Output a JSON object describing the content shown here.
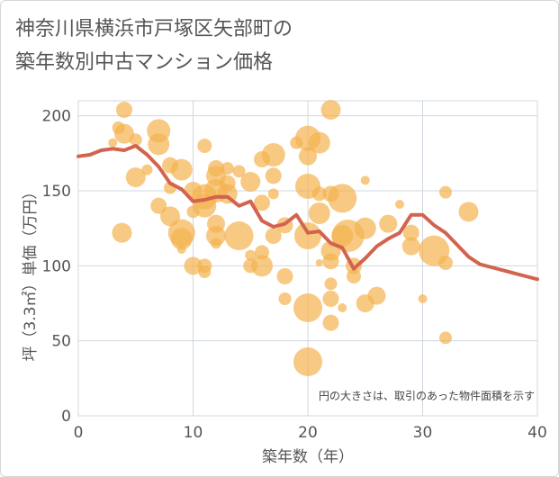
{
  "chart_data": {
    "type": "scatter",
    "title_lines": [
      "神奈川県横浜市戸塚区矢部町の",
      "築年数別中古マンション価格"
    ],
    "xlabel": "築年数（年）",
    "ylabel": "坪（3.3㎡）単価（万円）",
    "xlim": [
      0,
      40
    ],
    "ylim": [
      0,
      210
    ],
    "xticks": [
      0,
      10,
      20,
      30,
      40
    ],
    "yticks": [
      0,
      50,
      100,
      150,
      200
    ],
    "grid": true,
    "note": "円の大きさは、取引のあった物件面積を示す",
    "colors": {
      "bubble": "#f4b24f",
      "line": "#d2644f",
      "grid": "#cfd8e0",
      "axis": "#555555"
    },
    "bubbles": [
      {
        "x": 3,
        "y": 182,
        "r": 5
      },
      {
        "x": 3.5,
        "y": 192,
        "r": 7
      },
      {
        "x": 4,
        "y": 204,
        "r": 9
      },
      {
        "x": 4,
        "y": 188,
        "r": 11
      },
      {
        "x": 3.8,
        "y": 122,
        "r": 11
      },
      {
        "x": 5,
        "y": 184,
        "r": 7
      },
      {
        "x": 5,
        "y": 159,
        "r": 11
      },
      {
        "x": 6,
        "y": 164,
        "r": 6
      },
      {
        "x": 7,
        "y": 190,
        "r": 13
      },
      {
        "x": 7,
        "y": 181,
        "r": 12
      },
      {
        "x": 8,
        "y": 167,
        "r": 9
      },
      {
        "x": 7,
        "y": 140,
        "r": 9
      },
      {
        "x": 8,
        "y": 152,
        "r": 7
      },
      {
        "x": 8,
        "y": 133,
        "r": 11
      },
      {
        "x": 9,
        "y": 164,
        "r": 12
      },
      {
        "x": 9,
        "y": 122,
        "r": 15
      },
      {
        "x": 9,
        "y": 118,
        "r": 12
      },
      {
        "x": 9,
        "y": 111,
        "r": 5
      },
      {
        "x": 10,
        "y": 150,
        "r": 10
      },
      {
        "x": 10,
        "y": 136,
        "r": 7
      },
      {
        "x": 10,
        "y": 100,
        "r": 10
      },
      {
        "x": 11,
        "y": 180,
        "r": 8
      },
      {
        "x": 11,
        "y": 146,
        "r": 14
      },
      {
        "x": 11,
        "y": 140,
        "r": 13
      },
      {
        "x": 11,
        "y": 100,
        "r": 8
      },
      {
        "x": 11,
        "y": 96,
        "r": 7
      },
      {
        "x": 12,
        "y": 165,
        "r": 9
      },
      {
        "x": 12,
        "y": 160,
        "r": 11
      },
      {
        "x": 12,
        "y": 150,
        "r": 13
      },
      {
        "x": 12,
        "y": 128,
        "r": 10
      },
      {
        "x": 12,
        "y": 120,
        "r": 11
      },
      {
        "x": 12,
        "y": 115,
        "r": 6
      },
      {
        "x": 13,
        "y": 165,
        "r": 7
      },
      {
        "x": 13,
        "y": 155,
        "r": 9
      },
      {
        "x": 13,
        "y": 148,
        "r": 11
      },
      {
        "x": 14,
        "y": 163,
        "r": 7
      },
      {
        "x": 14,
        "y": 120,
        "r": 16
      },
      {
        "x": 15,
        "y": 156,
        "r": 11
      },
      {
        "x": 15,
        "y": 100,
        "r": 8
      },
      {
        "x": 15,
        "y": 107,
        "r": 6
      },
      {
        "x": 16,
        "y": 142,
        "r": 9
      },
      {
        "x": 16,
        "y": 109,
        "r": 8
      },
      {
        "x": 16,
        "y": 100,
        "r": 12
      },
      {
        "x": 16,
        "y": 171,
        "r": 9
      },
      {
        "x": 17,
        "y": 174,
        "r": 13
      },
      {
        "x": 17,
        "y": 160,
        "r": 9
      },
      {
        "x": 17,
        "y": 148,
        "r": 6
      },
      {
        "x": 17,
        "y": 120,
        "r": 9
      },
      {
        "x": 18,
        "y": 93,
        "r": 9
      },
      {
        "x": 18,
        "y": 78,
        "r": 7
      },
      {
        "x": 18,
        "y": 127,
        "r": 9
      },
      {
        "x": 19,
        "y": 182,
        "r": 7
      },
      {
        "x": 20,
        "y": 185,
        "r": 14
      },
      {
        "x": 20,
        "y": 173,
        "r": 10
      },
      {
        "x": 20,
        "y": 153,
        "r": 14
      },
      {
        "x": 20,
        "y": 120,
        "r": 15
      },
      {
        "x": 20,
        "y": 72,
        "r": 16
      },
      {
        "x": 20,
        "y": 36,
        "r": 16
      },
      {
        "x": 21,
        "y": 182,
        "r": 12
      },
      {
        "x": 21,
        "y": 148,
        "r": 8
      },
      {
        "x": 21,
        "y": 135,
        "r": 12
      },
      {
        "x": 21,
        "y": 102,
        "r": 4
      },
      {
        "x": 22,
        "y": 204,
        "r": 11
      },
      {
        "x": 22,
        "y": 148,
        "r": 9
      },
      {
        "x": 22,
        "y": 110,
        "r": 11
      },
      {
        "x": 22,
        "y": 103,
        "r": 9
      },
      {
        "x": 22,
        "y": 88,
        "r": 7
      },
      {
        "x": 22,
        "y": 78,
        "r": 9
      },
      {
        "x": 22,
        "y": 62,
        "r": 9
      },
      {
        "x": 23,
        "y": 145,
        "r": 16
      },
      {
        "x": 23,
        "y": 120,
        "r": 12
      },
      {
        "x": 23,
        "y": 72,
        "r": 5
      },
      {
        "x": 23.5,
        "y": 120,
        "r": 18
      },
      {
        "x": 24,
        "y": 100,
        "r": 9
      },
      {
        "x": 24,
        "y": 93,
        "r": 8
      },
      {
        "x": 25,
        "y": 157,
        "r": 5
      },
      {
        "x": 25,
        "y": 125,
        "r": 12
      },
      {
        "x": 25,
        "y": 75,
        "r": 10
      },
      {
        "x": 26,
        "y": 80,
        "r": 10
      },
      {
        "x": 27,
        "y": 128,
        "r": 10
      },
      {
        "x": 28,
        "y": 141,
        "r": 5
      },
      {
        "x": 29,
        "y": 122,
        "r": 9
      },
      {
        "x": 29,
        "y": 113,
        "r": 10
      },
      {
        "x": 30,
        "y": 78,
        "r": 5
      },
      {
        "x": 31,
        "y": 110,
        "r": 17
      },
      {
        "x": 32,
        "y": 149,
        "r": 7
      },
      {
        "x": 32,
        "y": 102,
        "r": 8
      },
      {
        "x": 32,
        "y": 52,
        "r": 7
      },
      {
        "x": 34,
        "y": 136,
        "r": 11
      }
    ],
    "line": {
      "x": [
        0,
        1,
        2,
        3,
        4,
        5,
        6,
        7,
        8,
        9,
        10,
        11,
        12,
        13,
        14,
        15,
        16,
        17,
        18,
        19,
        20,
        21,
        22,
        23,
        24,
        25,
        26,
        27,
        28,
        29,
        30,
        31,
        32,
        33,
        34,
        35,
        36,
        37,
        38,
        39,
        40
      ],
      "y": [
        173,
        174,
        177,
        178,
        177,
        180,
        174,
        166,
        155,
        151,
        143,
        144,
        146,
        146,
        140,
        143,
        130,
        126,
        128,
        134,
        122,
        123,
        115,
        112,
        98,
        105,
        113,
        118,
        122,
        134,
        134,
        127,
        122,
        114,
        106,
        101,
        99,
        97,
        95,
        93,
        91
      ]
    }
  }
}
